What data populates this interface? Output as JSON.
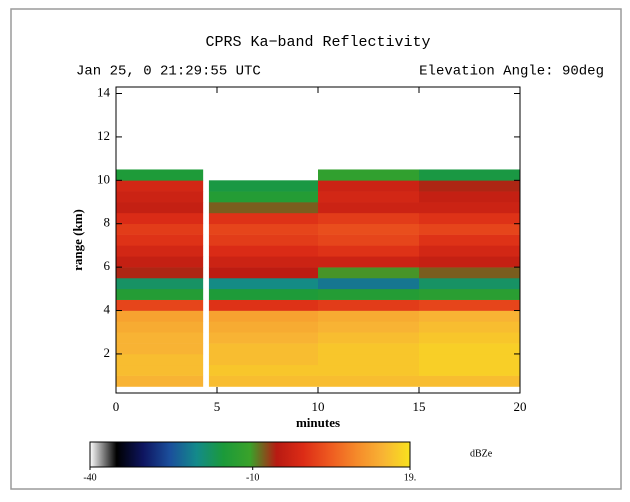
{
  "chart_data": {
    "type": "heatmap",
    "title": "CPRS Ka−band Reflectivity",
    "subtitle_left": "Jan 25, 0 21:29:55 UTC",
    "subtitle_right": "Elevation Angle: 90deg",
    "x_label": "minutes",
    "y_label": "range (km)",
    "xlim": [
      0,
      20
    ],
    "ylim": [
      0.2,
      14.3
    ],
    "xticks": [
      0,
      5,
      10,
      15,
      20
    ],
    "yticks": [
      2,
      4,
      6,
      8,
      10,
      12,
      14
    ],
    "x_edges": [
      0,
      4.3,
      4.6,
      10,
      15,
      20
    ],
    "y_edges": [
      0.5,
      1,
      1.5,
      2,
      2.5,
      3,
      3.5,
      4,
      4.5,
      5,
      5.5,
      6,
      6.5,
      7,
      7.5,
      8,
      8.5,
      9,
      9.5,
      10,
      10.5
    ],
    "values": [
      [
        14,
        null,
        15,
        15,
        15
      ],
      [
        15,
        null,
        16,
        16,
        17
      ],
      [
        15,
        null,
        15,
        16,
        17
      ],
      [
        14,
        null,
        15,
        16,
        17
      ],
      [
        14,
        null,
        14,
        15,
        16
      ],
      [
        13,
        null,
        13,
        14,
        15
      ],
      [
        12,
        null,
        12,
        13,
        14
      ],
      [
        2,
        null,
        0,
        1,
        2
      ],
      [
        -14,
        null,
        -15,
        -14,
        -13
      ],
      [
        -18,
        null,
        -20,
        -22,
        -18
      ],
      [
        -6,
        null,
        -5,
        -10,
        -8
      ],
      [
        -4,
        null,
        -3,
        -3,
        -4
      ],
      [
        -2,
        null,
        -1,
        0,
        -2
      ],
      [
        0,
        null,
        1,
        2,
        0
      ],
      [
        1,
        null,
        2,
        3,
        2
      ],
      [
        -1,
        null,
        0,
        1,
        0
      ],
      [
        -4,
        null,
        -8,
        -3,
        -3
      ],
      [
        -3,
        null,
        -14,
        -2,
        -4
      ],
      [
        -2,
        null,
        -16,
        -3,
        -6
      ],
      [
        -15,
        null,
        null,
        -12,
        -16
      ]
    ],
    "clim": [
      -40,
      19
    ],
    "colormap": [
      "#ffffff",
      "#000000",
      "#0e1560",
      "#1b4f9c",
      "#138a8a",
      "#1b9a3a",
      "#3aa22a",
      "#b81a12",
      "#dc2c16",
      "#ee5a20",
      "#f58a2a",
      "#f8b434",
      "#f8e21e"
    ],
    "colorbar_ticks": [
      -40,
      -10,
      {
        "value": 19,
        "label": "19."
      }
    ],
    "colorbar_unit": "dBZe"
  }
}
